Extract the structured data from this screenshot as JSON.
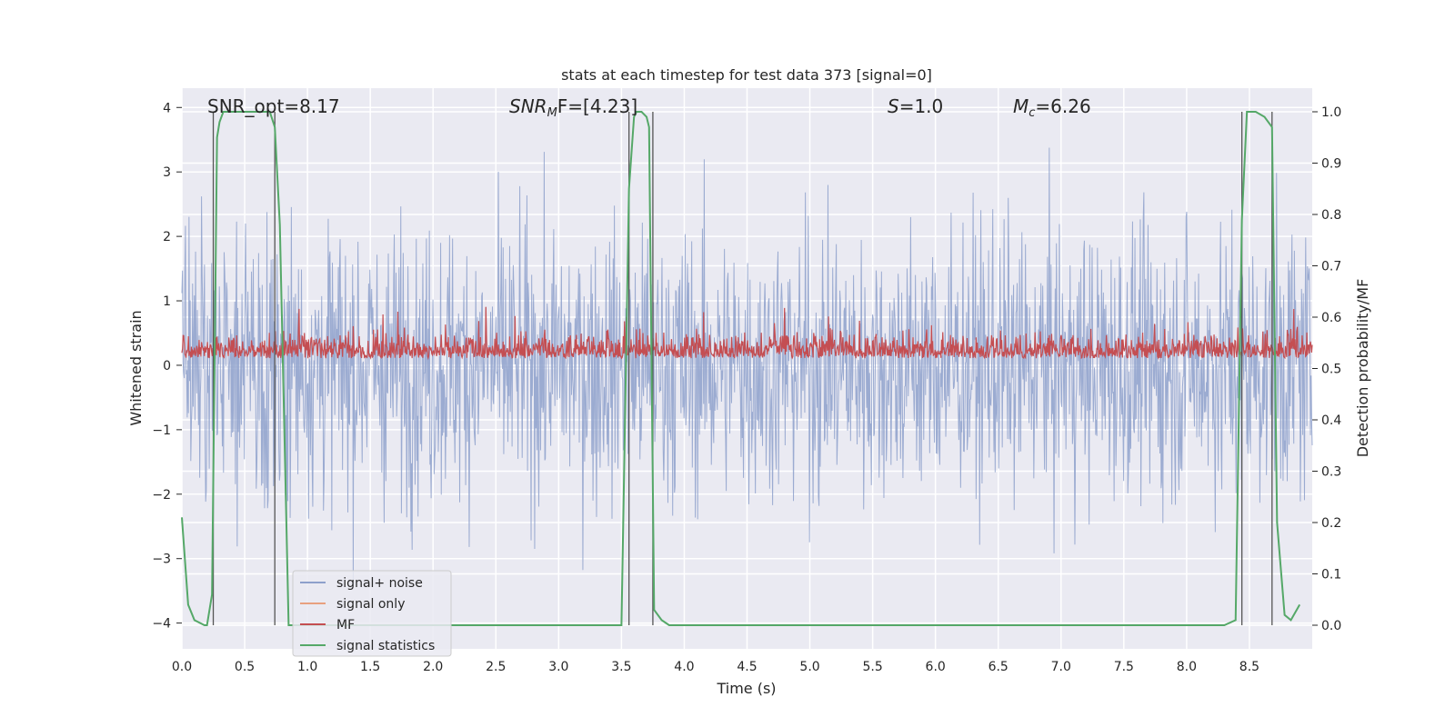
{
  "chart_data": {
    "type": "line",
    "title": "stats at each timestep for test data 373 [signal=0]",
    "xlabel": "Time (s)",
    "ylabel": "Whitened strain",
    "y2label": "Detection probability/MF",
    "xlim": [
      0.0,
      9.0
    ],
    "ylim": [
      -4.4,
      4.3
    ],
    "y2lim": [
      -0.046,
      1.046
    ],
    "xticks": [
      "0.0",
      "0.5",
      "1.0",
      "1.5",
      "2.0",
      "2.5",
      "3.0",
      "3.5",
      "4.0",
      "4.5",
      "5.0",
      "5.5",
      "6.0",
      "6.5",
      "7.0",
      "7.5",
      "8.0",
      "8.5"
    ],
    "yticks": [
      "4",
      "3",
      "2",
      "1",
      "0",
      "−1",
      "−2",
      "−3",
      "−4"
    ],
    "y2ticks": [
      "1.0",
      "0.9",
      "0.8",
      "0.7",
      "0.6",
      "0.5",
      "0.4",
      "0.3",
      "0.2",
      "0.1",
      "0.0"
    ],
    "annotations": {
      "snr_opt": "SNR_opt=8.17",
      "snr_mf_main": "SNR",
      "snr_mf_sub": "M",
      "snr_mf_tail": "F=[4.23]",
      "s_label": "S",
      "s_value": "=1.0",
      "mc_label": "M",
      "mc_sub": "c",
      "mc_value": "=6.26"
    },
    "legend": {
      "position": "lower-left",
      "entries": [
        {
          "label": "signal+ noise",
          "color": "#8da0cb"
        },
        {
          "label": "signal only",
          "color": "#e8a07f"
        },
        {
          "label": "MF",
          "color": "#c44e52"
        },
        {
          "label": "signal statistics",
          "color": "#55a868"
        }
      ]
    },
    "series": [
      {
        "name": "signal+ noise",
        "color": "#8da0cb",
        "description": "dense white-noise strain, amplitude roughly within [-3.8, 3.5]",
        "y_range_approx": [
          -3.8,
          3.5
        ]
      },
      {
        "name": "MF",
        "color": "#c44e52",
        "axis": "right",
        "description": "matched-filter output fluctuating around 0.52",
        "y_range_approx": [
          0.5,
          0.6
        ]
      },
      {
        "name": "signal statistics",
        "color": "#55a868",
        "axis": "right",
        "x": [
          0.0,
          0.05,
          0.1,
          0.18,
          0.2,
          0.24,
          0.28,
          0.3,
          0.33,
          0.38,
          0.5,
          0.6,
          0.7,
          0.74,
          0.78,
          0.85,
          1.0,
          2.0,
          3.0,
          3.5,
          3.56,
          3.6,
          3.62,
          3.66,
          3.7,
          3.72,
          3.76,
          3.82,
          3.88,
          4.0,
          5.0,
          6.0,
          7.0,
          8.0,
          8.3,
          8.39,
          8.44,
          8.48,
          8.55,
          8.62,
          8.68,
          8.72,
          8.78,
          8.83,
          8.9
        ],
        "values": [
          0.21,
          0.04,
          0.01,
          0.0,
          0.0,
          0.06,
          0.95,
          0.98,
          1.0,
          1.0,
          1.0,
          1.0,
          1.0,
          0.97,
          0.78,
          0.0,
          0.0,
          0.0,
          0.0,
          0.0,
          0.85,
          0.99,
          1.0,
          1.0,
          0.99,
          0.97,
          0.03,
          0.01,
          0.0,
          0.0,
          0.0,
          0.0,
          0.0,
          0.0,
          0.0,
          0.01,
          0.79,
          1.0,
          1.0,
          0.99,
          0.97,
          0.2,
          0.02,
          0.01,
          0.04
        ]
      }
    ],
    "vertical_markers_s": [
      0.25,
      0.74,
      3.56,
      3.75,
      8.44,
      8.68
    ]
  }
}
